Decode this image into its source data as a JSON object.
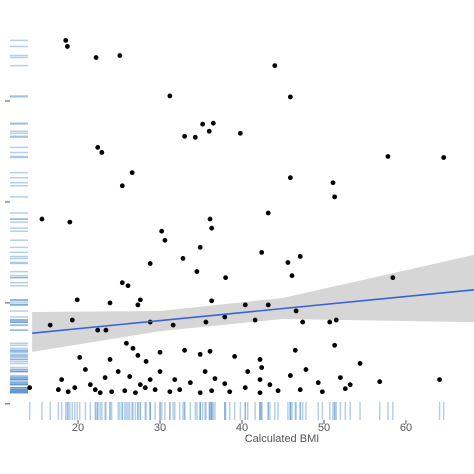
{
  "chart_data": {
    "type": "scatter",
    "x_label": "Calculated BMI",
    "xlim": [
      11.7,
      68.3
    ],
    "ylim": [
      -0.16,
      4.0
    ],
    "xticks": [
      20,
      30,
      40,
      50,
      60
    ],
    "yticks": [
      0,
      1,
      2,
      3
    ],
    "grid": false,
    "rug": true,
    "rug_color": "#5b95cc",
    "color": "#000000",
    "x": [
      18.5,
      18.7,
      22.2,
      25.1,
      44.0,
      31.2,
      45.9,
      35.2,
      36.5,
      36.0,
      39.8,
      33.0,
      34.3,
      22.4,
      22.9,
      57.8,
      64.6,
      26.6,
      45.9,
      25.4,
      51.1,
      51.3,
      15.6,
      19.0,
      43.2,
      36.1,
      36.3,
      30.2,
      30.6,
      34.9,
      42.4,
      47.1,
      28.8,
      32.8,
      25.4,
      26.1,
      34.5,
      45.6,
      46.1,
      38.0,
      58.4,
      19.9,
      23.9,
      27.3,
      27.6,
      36.3,
      40.4,
      43.2,
      46.6,
      16.6,
      19.3,
      22.4,
      23.4,
      28.8,
      31.6,
      35.6,
      37.9,
      41.6,
      47.4,
      50.7,
      51.5,
      25.9,
      26.7,
      27.3,
      28.3,
      20.2,
      23.9,
      30.0,
      33.0,
      34.9,
      36.1,
      39.1,
      42.2,
      46.5,
      51.3,
      54.4,
      18.0,
      20.9,
      21.5,
      23.3,
      24.9,
      26.3,
      27.6,
      28.8,
      30.0,
      31.8,
      33.7,
      35.5,
      36.7,
      37.9,
      40.7,
      42.2,
      43.4,
      45.9,
      47.8,
      49.3,
      52.0,
      53.2,
      14.1,
      17.6,
      18.8,
      19.6,
      22.1,
      22.7,
      24.1,
      25.7,
      27.0,
      28.2,
      29.4,
      31.2,
      32.4,
      34.9,
      36.3,
      38.5,
      40.4,
      42.2,
      44.4,
      47.1,
      49.8,
      52.6,
      56.8,
      64.1,
      42.4
    ],
    "y": [
      3.6,
      3.54,
      3.43,
      3.45,
      3.35,
      3.05,
      3.04,
      2.77,
      2.78,
      2.7,
      2.68,
      2.65,
      2.64,
      2.54,
      2.49,
      2.45,
      2.44,
      2.29,
      2.24,
      2.16,
      2.19,
      2.05,
      1.83,
      1.8,
      1.89,
      1.83,
      1.74,
      1.71,
      1.62,
      1.55,
      1.5,
      1.46,
      1.39,
      1.44,
      1.2,
      1.17,
      1.31,
      1.4,
      1.27,
      1.25,
      1.25,
      1.03,
      1.0,
      0.98,
      1.03,
      1.02,
      0.98,
      0.98,
      0.92,
      0.78,
      0.83,
      0.73,
      0.73,
      0.81,
      0.78,
      0.81,
      0.86,
      0.83,
      0.81,
      0.81,
      0.83,
      0.6,
      0.55,
      0.48,
      0.42,
      0.46,
      0.44,
      0.51,
      0.53,
      0.49,
      0.52,
      0.47,
      0.44,
      0.53,
      0.58,
      0.4,
      0.24,
      0.34,
      0.19,
      0.26,
      0.32,
      0.27,
      0.19,
      0.24,
      0.32,
      0.24,
      0.21,
      0.32,
      0.25,
      0.2,
      0.32,
      0.24,
      0.19,
      0.28,
      0.34,
      0.21,
      0.26,
      0.19,
      0.16,
      0.14,
      0.12,
      0.16,
      0.14,
      0.11,
      0.12,
      0.13,
      0.11,
      0.16,
      0.14,
      0.12,
      0.14,
      0.11,
      0.13,
      0.12,
      0.16,
      0.11,
      0.13,
      0.14,
      0.12,
      0.15,
      0.22,
      0.24,
      0.36
    ],
    "fit": {
      "x": [
        14.4,
        68.3
      ],
      "y": [
        0.7,
        1.13
      ],
      "color": "#3a62d8"
    },
    "band": {
      "x": [
        14.4,
        30,
        45,
        68.3
      ],
      "lower": [
        0.515,
        0.72,
        0.84,
        0.81
      ],
      "upper": [
        0.91,
        0.92,
        1.05,
        1.475
      ],
      "color": "#c8c8c8"
    }
  }
}
